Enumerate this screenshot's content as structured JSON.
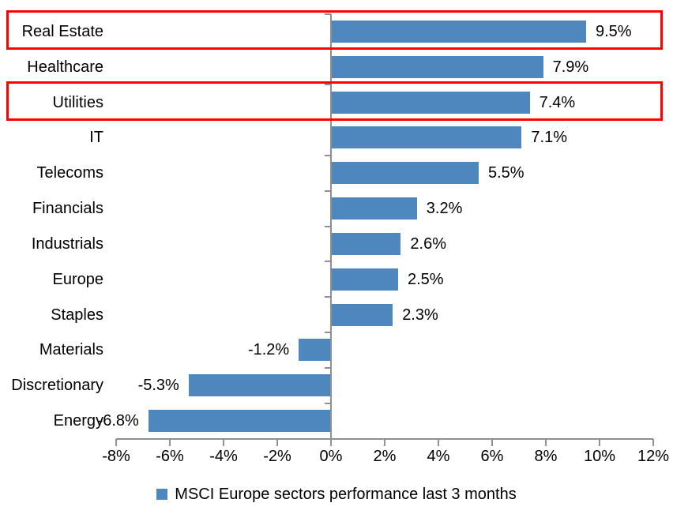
{
  "chart_data": {
    "type": "bar",
    "orientation": "horizontal",
    "title": "",
    "categories": [
      "Real Estate",
      "Healthcare",
      "Utilities",
      "IT",
      "Telecoms",
      "Financials",
      "Industrials",
      "Europe",
      "Staples",
      "Materials",
      "Discretionary",
      "Energy"
    ],
    "values": [
      9.5,
      7.9,
      7.4,
      7.1,
      5.5,
      3.2,
      2.6,
      2.5,
      2.3,
      -1.2,
      -5.3,
      -6.8
    ],
    "value_labels": [
      "9.5%",
      "7.9%",
      "7.4%",
      "7.1%",
      "5.5%",
      "3.2%",
      "2.6%",
      "2.5%",
      "2.3%",
      "-1.2%",
      "-5.3%",
      "-6.8%"
    ],
    "x_ticks": [
      -8,
      -6,
      -4,
      -2,
      0,
      2,
      4,
      6,
      8,
      10,
      12
    ],
    "x_tick_labels": [
      "-8%",
      "-6%",
      "-4%",
      "-2%",
      "0%",
      "2%",
      "4%",
      "6%",
      "8%",
      "10%",
      "12%"
    ],
    "xlim": [
      -8,
      12
    ],
    "grid": false,
    "legend": "MSCI Europe sectors performance last 3 months",
    "legend_position": "bottom-center",
    "bar_color": "#4e86be",
    "axis_color": "#8f8f8f",
    "highlight_color": "#ff0000",
    "highlighted_categories": [
      "Real Estate",
      "Utilities"
    ]
  }
}
